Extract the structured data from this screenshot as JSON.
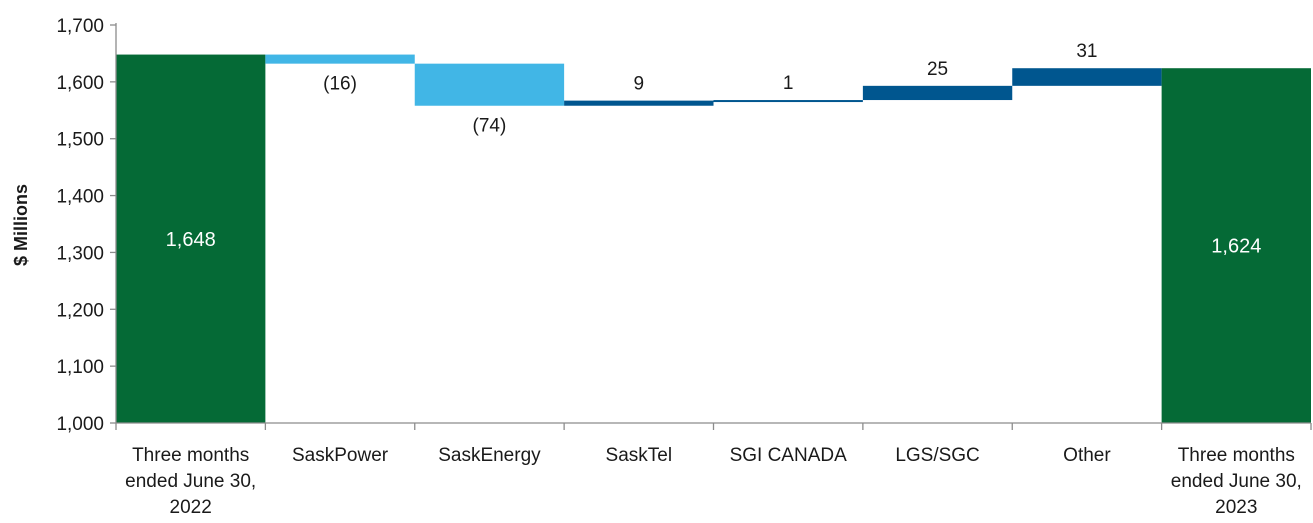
{
  "chart_data": {
    "type": "bar",
    "subtype": "waterfall",
    "ylabel": "$ Millions",
    "xlabel": "",
    "ylim": [
      1000,
      1700
    ],
    "yticks": [
      "1,000",
      "1,100",
      "1,200",
      "1,300",
      "1,400",
      "1,500",
      "1,600",
      "1,700"
    ],
    "ytick_values": [
      1000,
      1100,
      1200,
      1300,
      1400,
      1500,
      1600,
      1700
    ],
    "grid": false,
    "colors": {
      "total": "#056a36",
      "decrease": "#41b6e6",
      "increase": "#00568f",
      "axis": "#8c8c8c"
    },
    "bars": [
      {
        "category": [
          "Three months",
          "ended June 30,",
          "2022"
        ],
        "kind": "total",
        "start": 1000,
        "end": 1648,
        "label": "1,648"
      },
      {
        "category": [
          "SaskPower"
        ],
        "kind": "decrease",
        "start": 1648,
        "end": 1632,
        "label": "(16)"
      },
      {
        "category": [
          "SaskEnergy"
        ],
        "kind": "decrease",
        "start": 1632,
        "end": 1558,
        "label": "(74)"
      },
      {
        "category": [
          "SaskTel"
        ],
        "kind": "increase",
        "start": 1558,
        "end": 1567,
        "label": "9"
      },
      {
        "category": [
          "SGI CANADA"
        ],
        "kind": "increase",
        "start": 1567,
        "end": 1568,
        "label": "1"
      },
      {
        "category": [
          "LGS/SGC"
        ],
        "kind": "increase",
        "start": 1568,
        "end": 1593,
        "label": "25"
      },
      {
        "category": [
          "Other"
        ],
        "kind": "increase",
        "start": 1593,
        "end": 1624,
        "label": "31"
      },
      {
        "category": [
          "Three months",
          "ended June 30,",
          "2023"
        ],
        "kind": "total",
        "start": 1000,
        "end": 1624,
        "label": "1,624"
      }
    ]
  }
}
